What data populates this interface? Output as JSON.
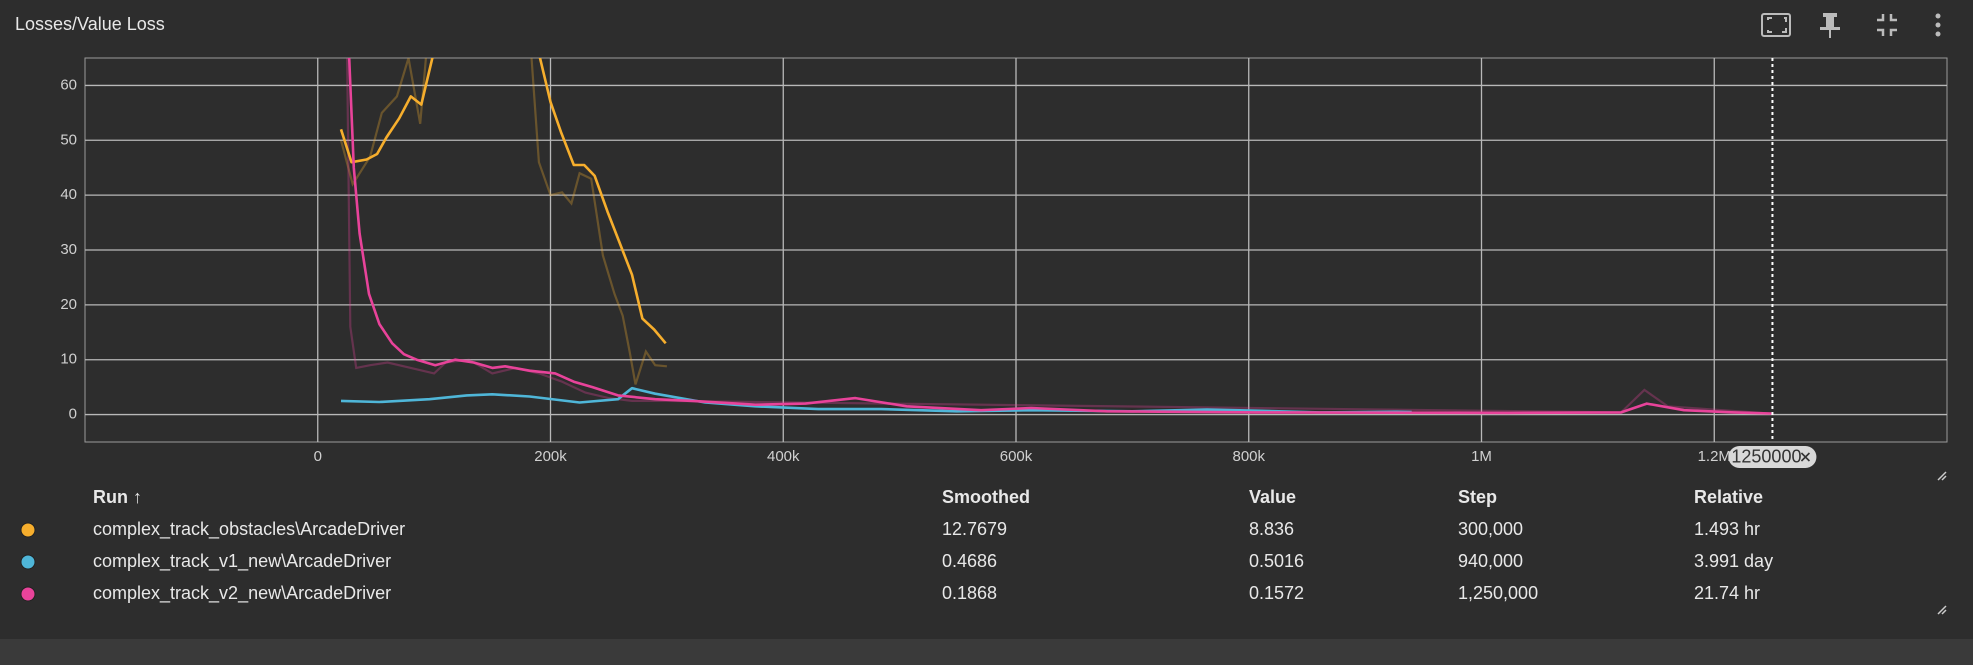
{
  "chart_data": {
    "type": "line",
    "title": "Losses/Value Loss",
    "xlim": [
      -200000,
      1400000
    ],
    "xticks": [
      {
        "value": 0,
        "label": "0"
      },
      {
        "value": 200000,
        "label": "200k"
      },
      {
        "value": 400000,
        "label": "400k"
      },
      {
        "value": 600000,
        "label": "600k"
      },
      {
        "value": 800000,
        "label": "800k"
      },
      {
        "value": 1000000,
        "label": "1M"
      },
      {
        "value": 1200000,
        "label": "1.2M"
      }
    ],
    "ylim": [
      -5,
      65
    ],
    "yticks": [
      0,
      10,
      20,
      30,
      40,
      50,
      60
    ],
    "grid": true,
    "cursor_step": 1250000,
    "series": [
      {
        "name": "complex_track_obstacles\\ArcadeDriver",
        "color": "#f6ae2d",
        "x": [
          20000,
          29000,
          42000,
          51000,
          59000,
          70000,
          80000,
          89000,
          99000,
          107000,
          182000,
          191000,
          200000,
          209000,
          220000,
          229000,
          238000,
          249000,
          260000,
          270000,
          279000,
          289000,
          299000
        ],
        "values": [
          52,
          46,
          46.5,
          47.5,
          50.5,
          54,
          58,
          56.5,
          65.5,
          75,
          75,
          65,
          57,
          51.5,
          45.5,
          45.5,
          43.5,
          37,
          31,
          25.5,
          17.5,
          15.5,
          13
        ],
        "raw_x": [
          20000,
          30000,
          45000,
          55000,
          68000,
          78000,
          88000,
          95000,
          182000,
          190000,
          200000,
          210000,
          218000,
          225000,
          235000,
          245000,
          255000,
          262000,
          268000,
          273000,
          282000,
          290000,
          300000
        ],
        "raw_values": [
          50,
          42,
          47,
          55,
          58,
          65,
          53,
          70,
          70,
          46,
          40,
          40.5,
          38.5,
          44,
          43,
          29,
          22,
          18,
          11.5,
          5.5,
          11.5,
          9,
          8.8
        ]
      },
      {
        "name": "complex_track_v1_new\\ArcadeDriver",
        "color": "#4fb6d8",
        "x": [
          20000,
          53000,
          96000,
          128000,
          150000,
          182000,
          225000,
          258000,
          270000,
          290000,
          333000,
          376000,
          430000,
          484000,
          549000,
          613000,
          700000,
          764000,
          807000,
          861000,
          926000,
          940000
        ],
        "values": [
          2.5,
          2.3,
          2.8,
          3.5,
          3.7,
          3.3,
          2.2,
          2.8,
          4.8,
          3.8,
          2.2,
          1.5,
          1.0,
          1.0,
          0.6,
          0.8,
          0.6,
          0.9,
          0.7,
          0.4,
          0.5,
          0.47
        ]
      },
      {
        "name": "complex_track_v2_new\\ArcadeDriver",
        "color": "#e8439a",
        "x": [
          27000,
          31000,
          36000,
          44000,
          53000,
          64000,
          74000,
          85000,
          101000,
          118000,
          134000,
          150000,
          161000,
          182000,
          204000,
          220000,
          236000,
          258000,
          290000,
          322000,
          376000,
          419000,
          462000,
          506000,
          570000,
          613000,
          678000,
          807000,
          1023000,
          1120000,
          1142000,
          1174000,
          1217000,
          1249000
        ],
        "values": [
          65,
          45,
          33,
          22,
          16.5,
          13,
          11,
          10,
          9,
          10,
          9.5,
          8.5,
          8.8,
          8,
          7.5,
          6,
          5,
          3.5,
          2.8,
          2.5,
          1.8,
          2,
          3,
          1.5,
          0.8,
          1.2,
          0.6,
          0.4,
          0.3,
          0.4,
          2,
          0.8,
          0.4,
          0.19
        ],
        "raw_x": [
          25000,
          28000,
          33000,
          45000,
          60000,
          80000,
          100000,
          110000,
          130000,
          150000,
          170000,
          190000,
          210000,
          230000,
          250000,
          270000,
          300000,
          1120000,
          1140000,
          1160000,
          1250000
        ],
        "raw_values": [
          70,
          16,
          8.5,
          9,
          9.5,
          8.5,
          7.5,
          9.5,
          10,
          7.5,
          8.5,
          7.5,
          6,
          4,
          3,
          2.5,
          2.5,
          0.4,
          4.5,
          1.5,
          0.16
        ]
      }
    ]
  },
  "table": {
    "columns": [
      "Run ↑",
      "Smoothed",
      "Value",
      "Step",
      "Relative"
    ],
    "rows": [
      [
        "12.7679",
        "8.836",
        "300,000",
        "1.493 hr"
      ],
      [
        "0.4686",
        "0.5016",
        "940,000",
        "3.991 day"
      ],
      [
        "0.1868",
        "0.1572",
        "1,250,000",
        "21.74 hr"
      ]
    ]
  }
}
